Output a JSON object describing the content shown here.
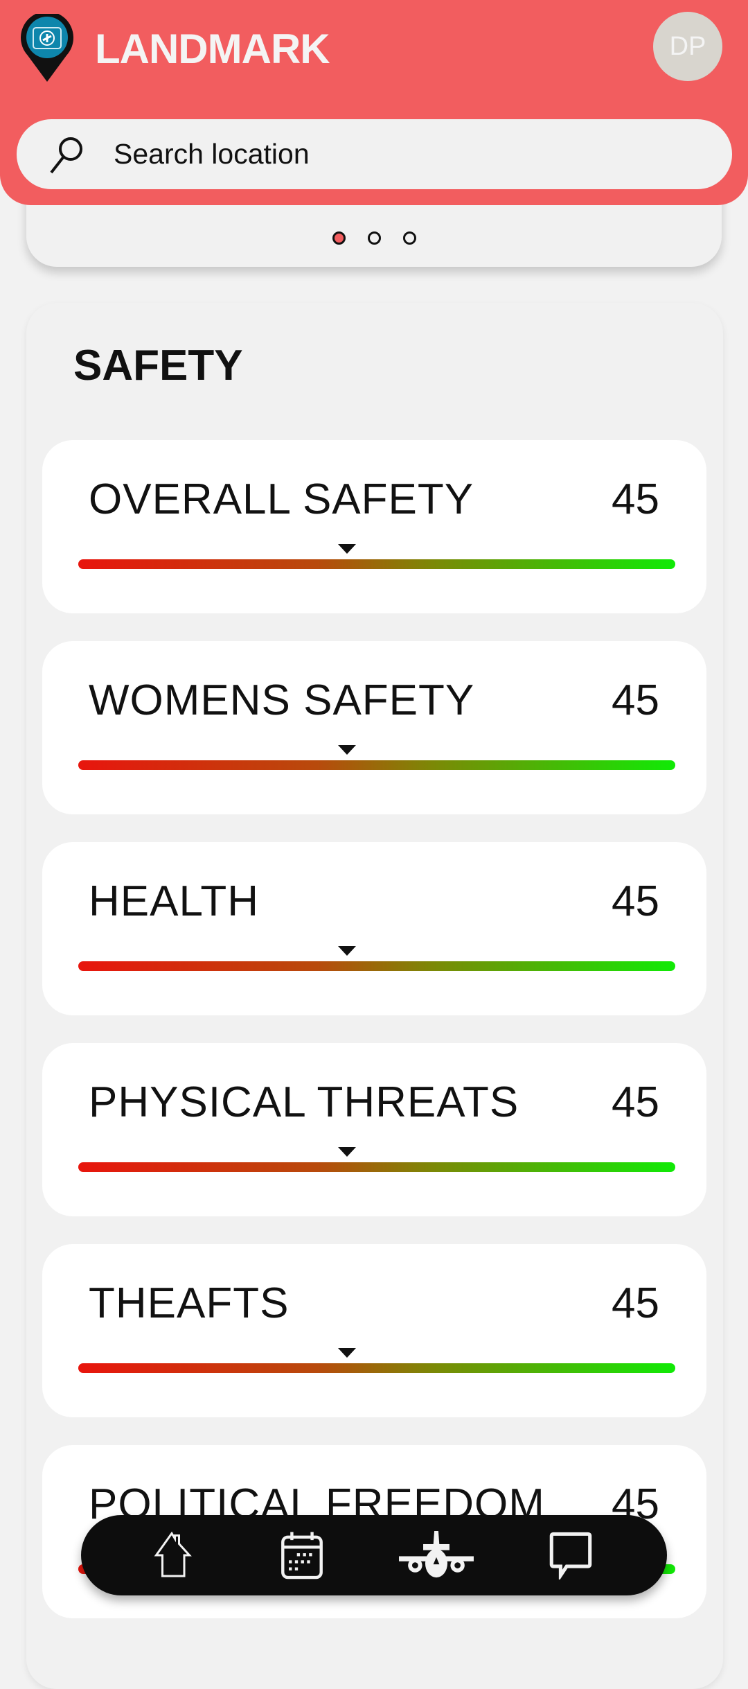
{
  "header": {
    "title": "LANDMARK",
    "avatar_initials": "DP",
    "search_placeholder": "Search location",
    "accent": "#f25d5f"
  },
  "carousel": {
    "page_count": 3,
    "active_index": 0
  },
  "safety": {
    "title": "SAFETY",
    "scale_max": 100,
    "items": [
      {
        "label": "OVERALL SAFETY",
        "value": "45",
        "score": 45
      },
      {
        "label": "WOMENS SAFETY",
        "value": "45",
        "score": 45
      },
      {
        "label": "HEALTH",
        "value": "45",
        "score": 45
      },
      {
        "label": "PHYSICAL THREATS",
        "value": "45",
        "score": 45
      },
      {
        "label": "THEAFTS",
        "value": "45",
        "score": 45
      },
      {
        "label": "POLITICAL FREEDOM",
        "value": "45",
        "score": 45
      }
    ]
  },
  "nav": {
    "items": [
      "home-icon",
      "calendar-icon",
      "airplane-icon",
      "chat-icon"
    ]
  }
}
